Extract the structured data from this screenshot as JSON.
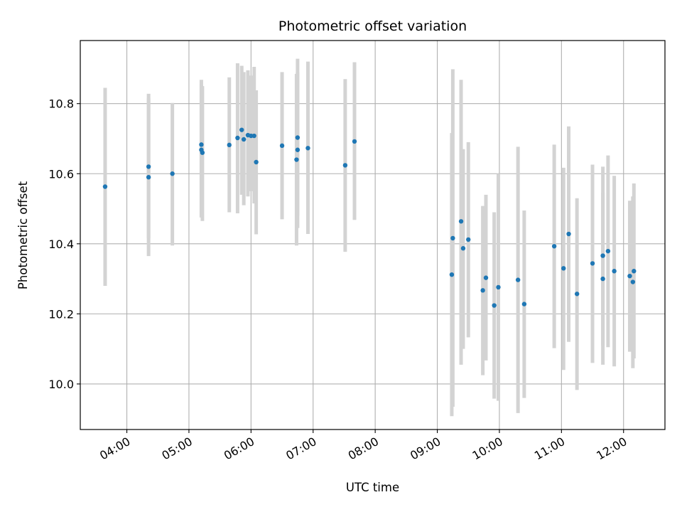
{
  "chart_data": {
    "type": "scatter",
    "title": "Photometric offset variation",
    "xlabel": "UTC time",
    "ylabel": "Photometric offset",
    "x_ticks": [
      "04:00",
      "05:00",
      "06:00",
      "07:00",
      "08:00",
      "09:00",
      "10:00",
      "11:00",
      "12:00"
    ],
    "y_ticks": [
      "10.0",
      "10.2",
      "10.4",
      "10.6",
      "10.8"
    ],
    "xlim": [
      "03:15",
      "12:40"
    ],
    "ylim": [
      9.87,
      10.98
    ],
    "grid": true,
    "colors": {
      "point": "#1f77b4",
      "errorbar": "#d3d3d3",
      "grid": "#b0b0b0"
    },
    "points": [
      {
        "x": "03:39",
        "y": 10.563,
        "ylo": 10.28,
        "yhi": 10.845
      },
      {
        "x": "04:21",
        "y": 10.62,
        "ylo": 10.415,
        "yhi": 10.828
      },
      {
        "x": "04:21",
        "y": 10.59,
        "ylo": 10.365,
        "yhi": 10.815
      },
      {
        "x": "04:44",
        "y": 10.6,
        "ylo": 10.395,
        "yhi": 10.802
      },
      {
        "x": "05:12",
        "y": 10.683,
        "ylo": 10.478,
        "yhi": 10.868
      },
      {
        "x": "05:12",
        "y": 10.668,
        "ylo": 10.475,
        "yhi": 10.855
      },
      {
        "x": "05:13",
        "y": 10.66,
        "ylo": 10.465,
        "yhi": 10.85
      },
      {
        "x": "05:39",
        "y": 10.682,
        "ylo": 10.49,
        "yhi": 10.875
      },
      {
        "x": "05:47",
        "y": 10.702,
        "ylo": 10.487,
        "yhi": 10.915
      },
      {
        "x": "05:51",
        "y": 10.725,
        "ylo": 10.54,
        "yhi": 10.908
      },
      {
        "x": "05:53",
        "y": 10.698,
        "ylo": 10.51,
        "yhi": 10.89
      },
      {
        "x": "05:57",
        "y": 10.71,
        "ylo": 10.535,
        "yhi": 10.895
      },
      {
        "x": "06:00",
        "y": 10.708,
        "ylo": 10.55,
        "yhi": 10.88
      },
      {
        "x": "06:03",
        "y": 10.708,
        "ylo": 10.515,
        "yhi": 10.905
      },
      {
        "x": "06:05",
        "y": 10.633,
        "ylo": 10.427,
        "yhi": 10.838
      },
      {
        "x": "06:30",
        "y": 10.68,
        "ylo": 10.47,
        "yhi": 10.89
      },
      {
        "x": "06:44",
        "y": 10.64,
        "ylo": 10.395,
        "yhi": 10.885
      },
      {
        "x": "06:45",
        "y": 10.703,
        "ylo": 10.48,
        "yhi": 10.928
      },
      {
        "x": "06:45",
        "y": 10.668,
        "ylo": 10.445,
        "yhi": 10.89
      },
      {
        "x": "06:55",
        "y": 10.673,
        "ylo": 10.428,
        "yhi": 10.92
      },
      {
        "x": "07:31",
        "y": 10.624,
        "ylo": 10.377,
        "yhi": 10.87
      },
      {
        "x": "07:40",
        "y": 10.692,
        "ylo": 10.468,
        "yhi": 10.918
      },
      {
        "x": "09:14",
        "y": 10.312,
        "ylo": 9.908,
        "yhi": 10.716
      },
      {
        "x": "09:15",
        "y": 10.416,
        "ylo": 9.935,
        "yhi": 10.898
      },
      {
        "x": "09:23",
        "y": 10.464,
        "ylo": 10.055,
        "yhi": 10.868
      },
      {
        "x": "09:25",
        "y": 10.387,
        "ylo": 10.1,
        "yhi": 10.67
      },
      {
        "x": "09:30",
        "y": 10.412,
        "ylo": 10.133,
        "yhi": 10.69
      },
      {
        "x": "09:44",
        "y": 10.267,
        "ylo": 10.025,
        "yhi": 10.508
      },
      {
        "x": "09:47",
        "y": 10.303,
        "ylo": 10.067,
        "yhi": 10.54
      },
      {
        "x": "09:55",
        "y": 10.224,
        "ylo": 9.958,
        "yhi": 10.49
      },
      {
        "x": "09:59",
        "y": 10.276,
        "ylo": 9.952,
        "yhi": 10.6
      },
      {
        "x": "10:18",
        "y": 10.297,
        "ylo": 9.917,
        "yhi": 10.677
      },
      {
        "x": "10:24",
        "y": 10.228,
        "ylo": 9.96,
        "yhi": 10.495
      },
      {
        "x": "10:53",
        "y": 10.393,
        "ylo": 10.102,
        "yhi": 10.683
      },
      {
        "x": "11:02",
        "y": 10.33,
        "ylo": 10.04,
        "yhi": 10.617
      },
      {
        "x": "11:07",
        "y": 10.428,
        "ylo": 10.12,
        "yhi": 10.735
      },
      {
        "x": "11:15",
        "y": 10.257,
        "ylo": 9.983,
        "yhi": 10.53
      },
      {
        "x": "11:30",
        "y": 10.344,
        "ylo": 10.06,
        "yhi": 10.626
      },
      {
        "x": "11:40",
        "y": 10.366,
        "ylo": 10.11,
        "yhi": 10.62
      },
      {
        "x": "11:40",
        "y": 10.3,
        "ylo": 10.055,
        "yhi": 10.545
      },
      {
        "x": "11:45",
        "y": 10.379,
        "ylo": 10.105,
        "yhi": 10.652
      },
      {
        "x": "11:51",
        "y": 10.322,
        "ylo": 10.05,
        "yhi": 10.594
      },
      {
        "x": "12:06",
        "y": 10.308,
        "ylo": 10.092,
        "yhi": 10.523
      },
      {
        "x": "12:09",
        "y": 10.291,
        "ylo": 10.045,
        "yhi": 10.535
      },
      {
        "x": "12:10",
        "y": 10.322,
        "ylo": 10.073,
        "yhi": 10.572
      }
    ]
  }
}
